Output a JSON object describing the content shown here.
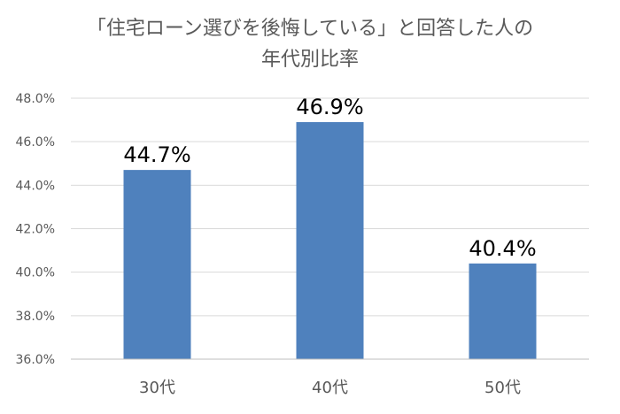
{
  "chart_data": {
    "type": "bar",
    "title_lines": [
      "「住宅ローン選びを後悔している」と回答した人の",
      "年代別比率"
    ],
    "categories": [
      "30代",
      "40代",
      "50代"
    ],
    "values": [
      44.7,
      46.9,
      40.4
    ],
    "data_labels": [
      "44.7%",
      "46.9%",
      "40.4%"
    ],
    "y_ticks": [
      36.0,
      38.0,
      40.0,
      42.0,
      44.0,
      46.0,
      48.0
    ],
    "y_tick_labels": [
      "36.0%",
      "38.0%",
      "40.0%",
      "42.0%",
      "44.0%",
      "46.0%",
      "48.0%"
    ],
    "ylim": [
      36,
      48
    ],
    "grid": true,
    "bar_color": "#4F81BD",
    "grid_color": "#D9D9D9",
    "axis_color": "#BFBFBF",
    "tick_text_color": "#595959",
    "label_text_color": "#000000"
  }
}
